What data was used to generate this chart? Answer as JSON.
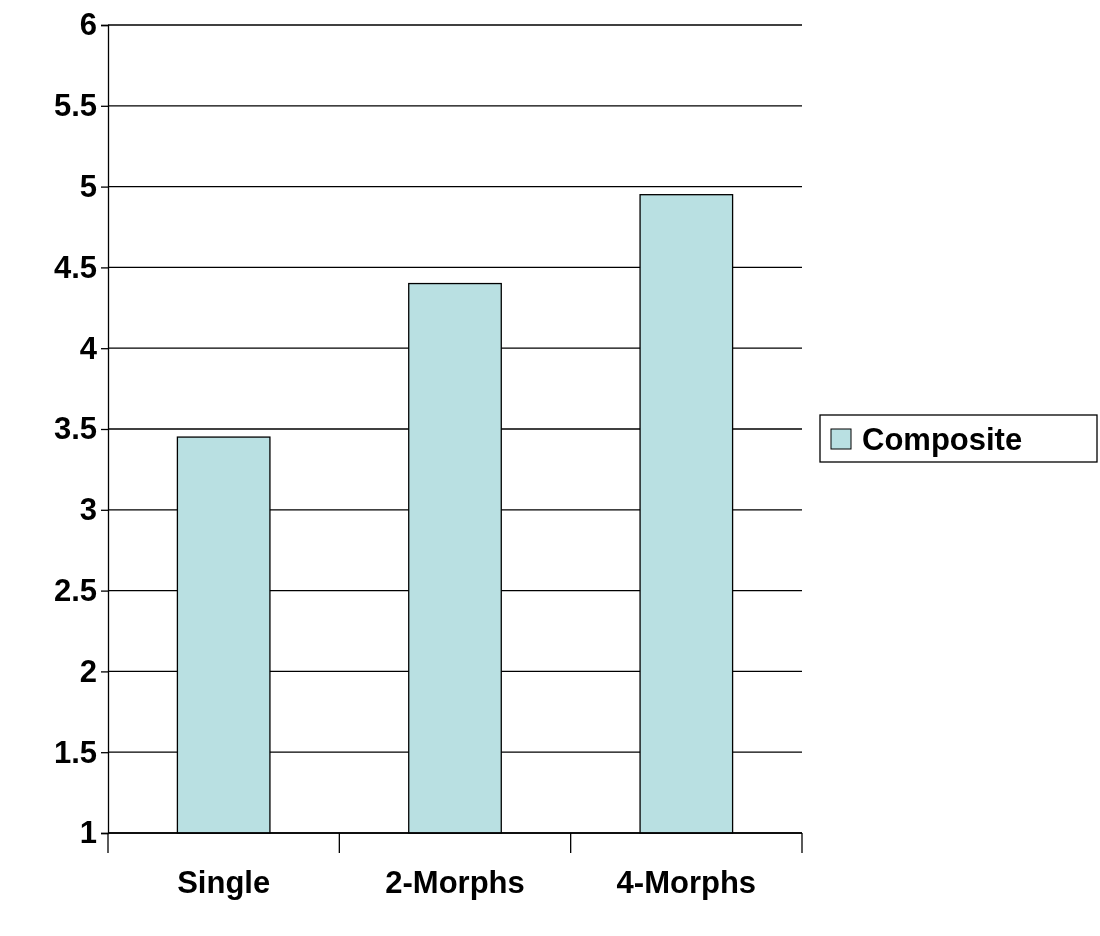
{
  "chart_data": {
    "type": "bar",
    "categories": [
      "Single",
      "2-Morphs",
      "4-Morphs"
    ],
    "series": [
      {
        "name": "Composite",
        "color": "#b9e0e2",
        "values": [
          3.45,
          4.4,
          4.95
        ]
      }
    ],
    "ylim": [
      1,
      6
    ],
    "yticks": [
      1,
      1.5,
      2,
      2.5,
      3,
      3.5,
      4,
      4.5,
      5,
      5.5,
      6
    ],
    "grid": "y",
    "legend": "right"
  }
}
